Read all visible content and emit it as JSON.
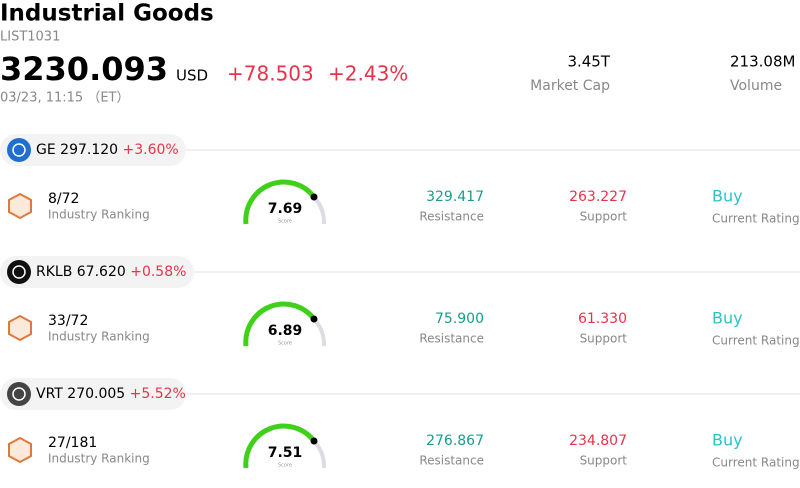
{
  "header": {
    "title": "Industrial Goods",
    "code": "LIST1031",
    "price": "3230.093",
    "currency": "USD",
    "change": "+78.503",
    "change_pct": "+2.43%",
    "time": "03/23, 11:15 （ET）",
    "market_cap": {
      "value": "3.45T",
      "label": "Market Cap"
    },
    "volume": {
      "value": "213.08M",
      "label": "Volume"
    }
  },
  "items": [
    {
      "ticker": "GE",
      "price": "297.120",
      "change_pct": "+3.60%",
      "ranking": "8/72",
      "ranking_label": "Industry Ranking",
      "score": "7.69",
      "score_label": "Score",
      "resistance": "329.417",
      "resistance_label": "Resistance",
      "support": "263.227",
      "support_label": "Support",
      "rating": "Buy",
      "rating_label": "Current Rating"
    },
    {
      "ticker": "RKLB",
      "price": "67.620",
      "change_pct": "+0.58%",
      "ranking": "33/72",
      "ranking_label": "Industry Ranking",
      "score": "6.89",
      "score_label": "Score",
      "resistance": "75.900",
      "resistance_label": "Resistance",
      "support": "61.330",
      "support_label": "Support",
      "rating": "Buy",
      "rating_label": "Current Rating"
    },
    {
      "ticker": "VRT",
      "price": "270.005",
      "change_pct": "+5.52%",
      "ranking": "27/181",
      "ranking_label": "Industry Ranking",
      "score": "7.51",
      "score_label": "Score",
      "resistance": "276.867",
      "resistance_label": "Resistance",
      "support": "234.807",
      "support_label": "Support",
      "rating": "Buy",
      "rating_label": "Current Rating"
    }
  ]
}
